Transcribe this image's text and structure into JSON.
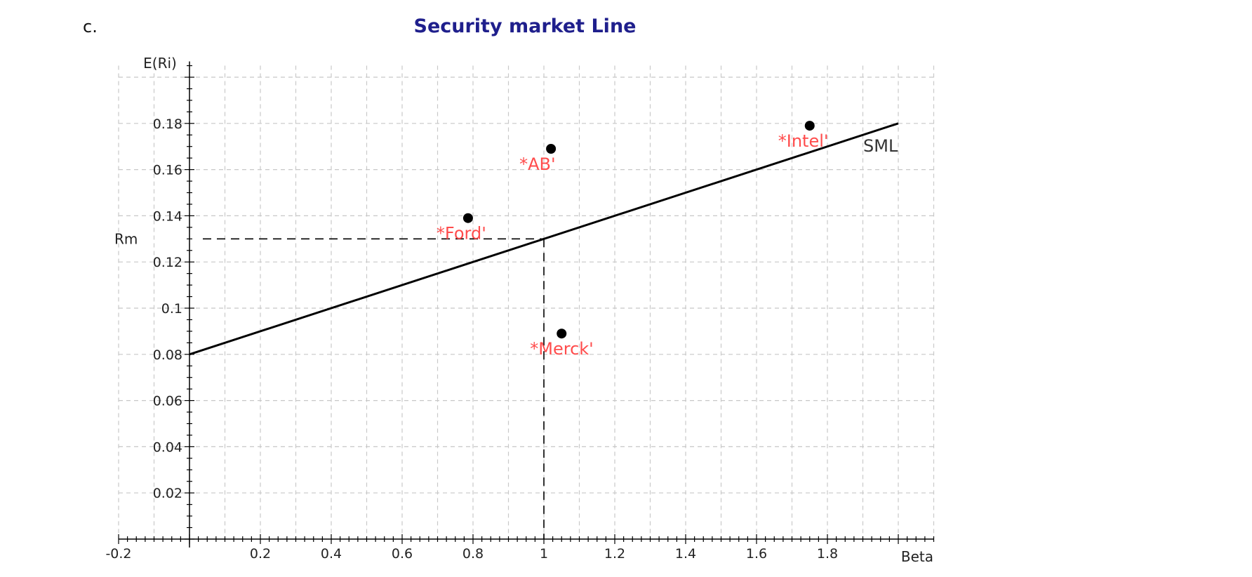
{
  "part_label": "c.",
  "chart_data": {
    "type": "scatter",
    "title": "Security market Line",
    "xlabel": "Beta",
    "ylabel": "E(Ri)",
    "xlim": [
      -0.2,
      2.1
    ],
    "ylim": [
      0,
      0.205
    ],
    "grid": true,
    "x_ticks": [
      {
        "value": -0.2,
        "label": "-0.2"
      },
      {
        "value": 0.2,
        "label": "0.2"
      },
      {
        "value": 0.4,
        "label": "0.4"
      },
      {
        "value": 0.6,
        "label": "0.6"
      },
      {
        "value": 0.8,
        "label": "0.8"
      },
      {
        "value": 1.0,
        "label": "1"
      },
      {
        "value": 1.2,
        "label": "1.2"
      },
      {
        "value": 1.4,
        "label": "1.4"
      },
      {
        "value": 1.6,
        "label": "1.6"
      },
      {
        "value": 1.8,
        "label": "1.8"
      }
    ],
    "y_ticks": [
      {
        "value": 0.02,
        "label": "0.02"
      },
      {
        "value": 0.04,
        "label": "0.04"
      },
      {
        "value": 0.06,
        "label": "0.06"
      },
      {
        "value": 0.08,
        "label": "0.08"
      },
      {
        "value": 0.1,
        "label": "0.1"
      },
      {
        "value": 0.12,
        "label": "0.12"
      },
      {
        "value": 0.14,
        "label": "0.14"
      },
      {
        "value": 0.16,
        "label": "0.16"
      },
      {
        "value": 0.18,
        "label": "0.18"
      }
    ],
    "sml": {
      "label": "SML",
      "points": [
        [
          0,
          0.08
        ],
        [
          2.0,
          0.18
        ]
      ]
    },
    "market": {
      "label": "Rm",
      "beta": 1.0,
      "return": 0.13
    },
    "points": [
      {
        "label": "*Ford'",
        "beta": 0.786,
        "return": 0.139
      },
      {
        "label": "*AB'",
        "beta": 1.02,
        "return": 0.169
      },
      {
        "label": "*Merck'",
        "beta": 1.05,
        "return": 0.089
      },
      {
        "label": "*Intel'",
        "beta": 1.75,
        "return": 0.179
      }
    ]
  }
}
